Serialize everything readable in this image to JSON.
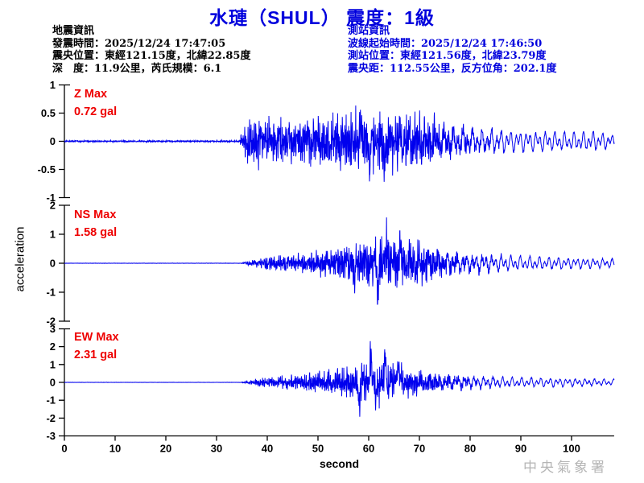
{
  "title": "水璉（SHUL） 震度：1級",
  "event_info": {
    "heading": "地震資訊",
    "lines": [
      "發震時間：2025/12/24 17:47:05",
      "震央位置：東經121.15度，北緯22.85度",
      "深　度：11.9公里，芮氏規模：6.1"
    ]
  },
  "station_info": {
    "heading": "測站資訊",
    "lines": [
      "波線起始時間：2025/12/24 17:46:50",
      "測站位置：東經121.56度，北緯23.79度",
      "震央距：112.55公里，反方位角：202.1度"
    ]
  },
  "watermark": "中央氣象署",
  "colors": {
    "blue_text": "#0000dd",
    "trace_blue": "#0000ee",
    "label_red": "#ee0000",
    "axis_black": "#000000",
    "watermark_gray": "#b5b5b5"
  },
  "chart_data": {
    "type": "line",
    "title": "水璉（SHUL） 震度：1級",
    "xlabel": "second",
    "ylabel": "acceleration",
    "x_range": [
      0,
      108.4
    ],
    "x_ticks": [
      0,
      10,
      20,
      30,
      40,
      50,
      60,
      70,
      80,
      90,
      100
    ],
    "event_onset_s": 35,
    "grid": false,
    "panels": [
      {
        "id": "Z",
        "label": "Z Max",
        "max_text": "0.72 gal",
        "max_gal": 0.72,
        "ylim": [
          -1,
          1
        ],
        "yticks": [
          1,
          0.5,
          0,
          -0.5,
          -1
        ],
        "envelope": [
          [
            0,
            0.02
          ],
          [
            34.5,
            0.02
          ],
          [
            35.2,
            0.3
          ],
          [
            36,
            0.5
          ],
          [
            40,
            0.52
          ],
          [
            45,
            0.5
          ],
          [
            50,
            0.55
          ],
          [
            55,
            0.6
          ],
          [
            58,
            0.68
          ],
          [
            61,
            0.72
          ],
          [
            64,
            0.62
          ],
          [
            68,
            0.58
          ],
          [
            72,
            0.52
          ],
          [
            76,
            0.4
          ],
          [
            80,
            0.34
          ],
          [
            85,
            0.3
          ],
          [
            90,
            0.28
          ],
          [
            95,
            0.26
          ],
          [
            100,
            0.24
          ],
          [
            104,
            0.26
          ],
          [
            108.4,
            0.18
          ]
        ],
        "spikes": [
          {
            "t": 60.2,
            "a": -0.72
          },
          {
            "t": 58.3,
            "a": 0.58
          },
          {
            "t": 63.1,
            "a": -0.6
          }
        ],
        "seed": 7
      },
      {
        "id": "NS",
        "label": "NS Max",
        "max_text": "1.58 gal",
        "max_gal": 1.58,
        "ylim": [
          -2,
          2
        ],
        "yticks": [
          2,
          1,
          0,
          -1,
          -2
        ],
        "envelope": [
          [
            0,
            0.008
          ],
          [
            34.8,
            0.008
          ],
          [
            36,
            0.08
          ],
          [
            38,
            0.18
          ],
          [
            40,
            0.3
          ],
          [
            44,
            0.38
          ],
          [
            48,
            0.45
          ],
          [
            52,
            0.6
          ],
          [
            55,
            0.8
          ],
          [
            58,
            0.95
          ],
          [
            61,
            1.15
          ],
          [
            63,
            1.3
          ],
          [
            65,
            1.1
          ],
          [
            67,
            1.15
          ],
          [
            69,
            0.95
          ],
          [
            72,
            0.8
          ],
          [
            75,
            0.65
          ],
          [
            78,
            0.55
          ],
          [
            82,
            0.5
          ],
          [
            86,
            0.45
          ],
          [
            90,
            0.4
          ],
          [
            95,
            0.35
          ],
          [
            100,
            0.3
          ],
          [
            108.4,
            0.25
          ]
        ],
        "spikes": [
          {
            "t": 61.8,
            "a": -1.58
          },
          {
            "t": 63.6,
            "a": 1.45
          },
          {
            "t": 57.2,
            "a": -1.25
          },
          {
            "t": 66.3,
            "a": 1.15
          }
        ],
        "seed": 13
      },
      {
        "id": "EW",
        "label": "EW Max",
        "max_text": "2.31 gal",
        "max_gal": 2.31,
        "ylim": [
          -3,
          3
        ],
        "yticks": [
          3,
          2,
          1,
          0,
          -1,
          -2,
          -3
        ],
        "envelope": [
          [
            0,
            0.008
          ],
          [
            34.8,
            0.008
          ],
          [
            36,
            0.1
          ],
          [
            38,
            0.2
          ],
          [
            40,
            0.3
          ],
          [
            44,
            0.4
          ],
          [
            48,
            0.5
          ],
          [
            52,
            0.65
          ],
          [
            55,
            0.8
          ],
          [
            57,
            0.9
          ],
          [
            59,
            1.0
          ],
          [
            61,
            1.1
          ],
          [
            63,
            1.0
          ],
          [
            65,
            0.95
          ],
          [
            67,
            0.85
          ],
          [
            69,
            0.75
          ],
          [
            72,
            0.6
          ],
          [
            75,
            0.5
          ],
          [
            78,
            0.45
          ],
          [
            82,
            0.4
          ],
          [
            86,
            0.35
          ],
          [
            90,
            0.32
          ],
          [
            95,
            0.3
          ],
          [
            100,
            0.28
          ],
          [
            108.4,
            0.2
          ]
        ],
        "spikes": [
          {
            "t": 60.4,
            "a": 2.31
          },
          {
            "t": 63.2,
            "a": 1.85
          },
          {
            "t": 58.1,
            "a": -1.35
          },
          {
            "t": 61.4,
            "a": -1.4
          },
          {
            "t": 65.8,
            "a": 1.5
          }
        ],
        "seed": 29
      }
    ]
  }
}
